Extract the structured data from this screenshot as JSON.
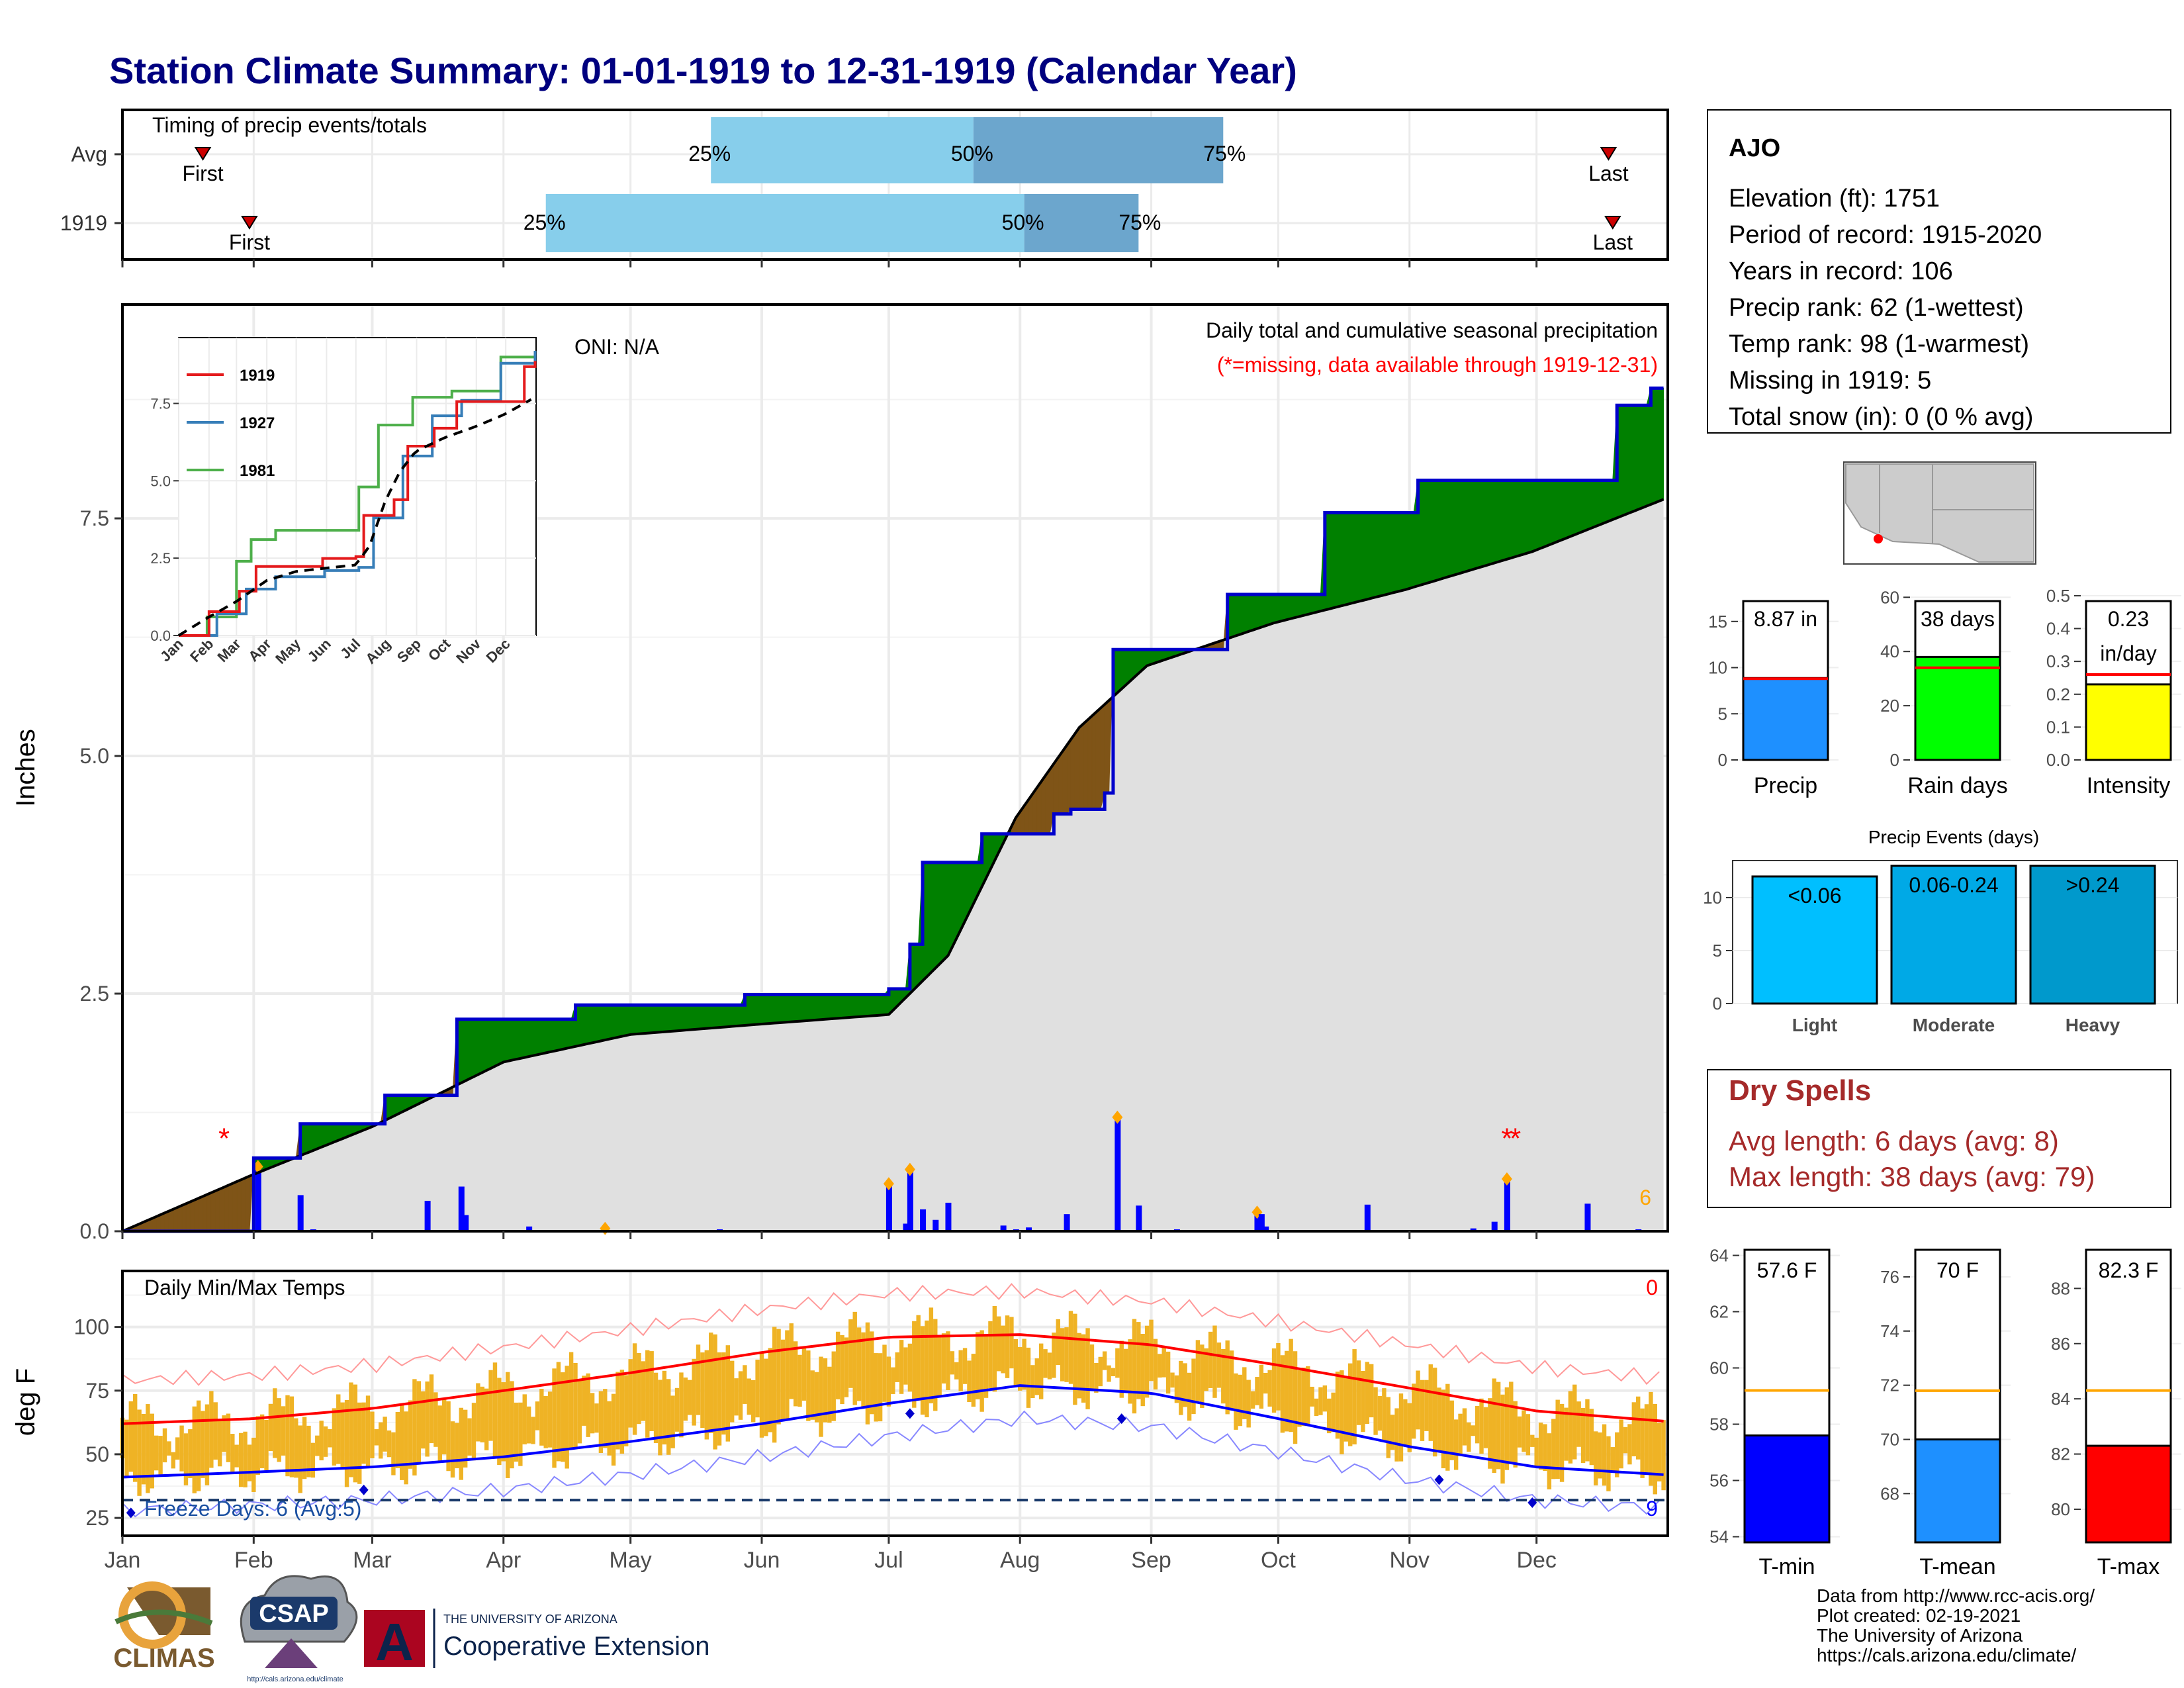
{
  "page_title": "Station Climate Summary: 01-01-1919 to 12-31-1919 (Calendar Year)",
  "colors": {
    "title": "#00007f",
    "cum_1919": "#0000cc",
    "above_avg_fill": "#008000",
    "below_avg_fill": "#7f5417",
    "avg_fill": "#e0e0e0",
    "daily_bar": "#0000ff",
    "temp_bar": "#efb325",
    "red_series": "#ff0000",
    "blue_series": "#0000ff",
    "light_blue": "#87ceeb",
    "mid_blue": "#6ca6cd",
    "dry_spell_text": "#a52a2a"
  },
  "timing_panel": {
    "title": "Timing of precip events/totals",
    "rows": [
      {
        "label": "Avg",
        "first_label": "First",
        "last_label": "Last",
        "first_day": 20,
        "last_day": 352,
        "p25_day": 140,
        "p50_day": 202,
        "p75_day": 261,
        "p25_label": "25%",
        "p50_label": "50%",
        "p75_label": "75%"
      },
      {
        "label": "1919",
        "first_label": "First",
        "last_label": "Last",
        "first_day": 31,
        "last_day": 353,
        "p25_day": 101,
        "p50_day": 214,
        "p75_day": 241,
        "p25_label": "25%",
        "p50_label": "50%",
        "p75_label": "75%"
      }
    ]
  },
  "precip_panel": {
    "title": "Daily total and cumulative seasonal precipitation",
    "subtitle": "(*=missing, data available through 1919-12-31)",
    "oni_label": "ONI: N/A",
    "ylabel": "Inches",
    "count_label": "6",
    "yticks": [
      "0.0",
      "2.5",
      "5.0",
      "7.5"
    ],
    "ylim": [
      0,
      9.75
    ]
  },
  "inset": {
    "legend": [
      "1919",
      "1927",
      "1981"
    ],
    "yticks": [
      "0.0",
      "2.5",
      "5.0",
      "7.5"
    ],
    "xticks": [
      "Jan",
      "Feb",
      "Mar",
      "Apr",
      "May",
      "Jun",
      "Jul",
      "Aug",
      "Sep",
      "Oct",
      "Nov",
      "Dec"
    ]
  },
  "temp_panel": {
    "title": "Daily Min/Max Temps",
    "ylabel": "deg F",
    "yticks": [
      "25",
      "50",
      "75",
      "100"
    ],
    "hot_count": "0",
    "freeze_label": "Freeze Days: 6 (Avg:5)",
    "freeze_count": "9"
  },
  "months": [
    "Jan",
    "Feb",
    "Mar",
    "Apr",
    "May",
    "Jun",
    "Jul",
    "Aug",
    "Sep",
    "Oct",
    "Nov",
    "Dec"
  ],
  "station": {
    "name": "AJO",
    "lines": [
      "Elevation (ft): 1751",
      "Period of record: 1915-2020",
      "Years in record: 106",
      "Precip rank: 62 (1-wettest)",
      "Temp rank: 98 (1-warmest)",
      "Missing in 1919: 5",
      "Total snow (in): 0 (0 % avg)"
    ]
  },
  "summary_bars": [
    {
      "name": "Precip",
      "value_label": "8.87 in",
      "value": 8.87,
      "avg": 8.8,
      "ylim": [
        0,
        18.5
      ],
      "ticks": [
        "0",
        "5",
        "10",
        "15"
      ],
      "color": "#1e90ff"
    },
    {
      "name": "Rain days",
      "value_label": "38 days",
      "value": 38,
      "avg": 34,
      "ylim": [
        0,
        63
      ],
      "ticks": [
        "0",
        "20",
        "40",
        "60"
      ],
      "color": "#00ff00"
    },
    {
      "name": "Intensity",
      "value_label": "0.23\nin/day",
      "value": 0.23,
      "avg": 0.26,
      "ylim": [
        0,
        0.52
      ],
      "ticks": [
        "0.0",
        "0.1",
        "0.2",
        "0.3",
        "0.4",
        "0.5"
      ],
      "color": "#ffff00"
    }
  ],
  "precip_events": {
    "title": "Precip Events (days)",
    "ticks": [
      "0",
      "5",
      "10"
    ],
    "ylim": [
      0,
      13.5
    ],
    "bars": [
      {
        "name": "Light",
        "range_label": "<0.06",
        "value": 12,
        "color": "#00bfff"
      },
      {
        "name": "Moderate",
        "range_label": "0.06-0.24",
        "value": 13,
        "color": "#00a9e6"
      },
      {
        "name": "Heavy",
        "range_label": ">0.24",
        "value": 13,
        "color": "#0099cc"
      }
    ]
  },
  "dry_spells": {
    "title": "Dry Spells",
    "avg_line": "Avg length: 6 days (avg: 8)",
    "max_line": "Max length: 38 days (avg: 79)"
  },
  "temp_summary": [
    {
      "name": "T-min",
      "value_label": "57.6 F",
      "value": 57.6,
      "avg": 59.2,
      "ylim": [
        53.8,
        64.2
      ],
      "ticks": [
        "54",
        "56",
        "58",
        "60",
        "62",
        "64"
      ],
      "color": "#0000ff"
    },
    {
      "name": "T-mean",
      "value_label": "70 F",
      "value": 70,
      "avg": 71.8,
      "ylim": [
        66.2,
        77.0
      ],
      "ticks": [
        "68",
        "70",
        "72",
        "74",
        "76"
      ],
      "color": "#1e90ff"
    },
    {
      "name": "T-max",
      "value_label": "82.3 F",
      "value": 82.3,
      "avg": 84.3,
      "ylim": [
        78.8,
        89.4
      ],
      "ticks": [
        "80",
        "82",
        "84",
        "86",
        "88"
      ],
      "color": "#ff0000"
    }
  ],
  "footer": {
    "credits": [
      "Data from http://www.rcc-acis.org/",
      "Plot created: 02-19-2021",
      "The University of Arizona",
      "https://cals.arizona.edu/climate/"
    ],
    "logos": {
      "climas": "CLIMAS",
      "csap": "CSAP",
      "csap_url": "http://cals.arizona.edu/climate",
      "ua_line1": "THE UNIVERSITY OF ARIZONA",
      "ua_line2": "Cooperative Extension",
      "ua_mark": "A"
    }
  },
  "chart_data": [
    {
      "type": "bar",
      "title": "Timing of precip events/totals",
      "categories": [
        "Avg",
        "1919"
      ],
      "series": [
        {
          "name": "25%",
          "values": [
            140,
            101
          ]
        },
        {
          "name": "50%",
          "values": [
            202,
            214
          ]
        },
        {
          "name": "75%",
          "values": [
            261,
            241
          ]
        }
      ]
    },
    {
      "type": "line",
      "title": "Daily total and cumulative seasonal precipitation",
      "ylabel": "Inches",
      "ylim": [
        0,
        9.75
      ],
      "series": [
        {
          "name": "1919",
          "x": [
            1,
            32,
            43,
            63,
            80,
            108,
            148,
            182,
            187,
            190,
            204,
            221,
            225,
            233,
            235,
            262,
            285,
            307,
            354,
            362,
            365
          ],
          "y": [
            0.0,
            0.77,
            1.13,
            1.43,
            2.23,
            2.38,
            2.49,
            2.55,
            3.02,
            3.88,
            4.18,
            4.39,
            4.44,
            4.61,
            6.12,
            6.7,
            7.56,
            7.9,
            8.69,
            8.87,
            8.87
          ]
        },
        {
          "name": "",
          "x": [
            1,
            31,
            60,
            91,
            121,
            152,
            182,
            196,
            212,
            227,
            243,
            273,
            304,
            334,
            365
          ],
          "y": [
            0.0,
            0.58,
            1.1,
            1.78,
            2.07,
            2.18,
            2.28,
            2.9,
            4.35,
            5.3,
            5.95,
            6.4,
            6.75,
            7.15,
            7.7
          ]
        }
      ],
      "daily_precip": {
        "x": [
          33,
          43,
          46,
          73,
          81,
          82,
          97,
          115,
          142,
          182,
          186,
          187,
          190,
          193,
          196,
          209,
          212,
          215,
          224,
          236,
          241,
          250,
          269,
          270,
          271,
          295,
          320,
          325,
          328,
          347,
          359
        ],
        "y": [
          0.68,
          0.38,
          0.02,
          0.32,
          0.47,
          0.17,
          0.05,
          0.03,
          0.02,
          0.5,
          0.08,
          0.65,
          0.23,
          0.12,
          0.3,
          0.06,
          0.02,
          0.04,
          0.18,
          1.2,
          0.27,
          0.02,
          0.2,
          0.18,
          0.05,
          0.28,
          0.03,
          0.1,
          0.55,
          0.29,
          0.02
        ]
      }
    },
    {
      "type": "line",
      "title": "",
      "xlabels": [
        "Jan",
        "Feb",
        "Mar",
        "Apr",
        "May",
        "Jun",
        "Jul",
        "Aug",
        "Sep",
        "Oct",
        "Nov",
        "Dec"
      ],
      "ylim": [
        0,
        9.2
      ],
      "series": [
        {
          "name": "1919",
          "x": [
            1,
            32,
            63,
            80,
            148,
            182,
            190,
            221,
            235,
            262,
            285,
            354,
            365
          ],
          "y": [
            0.0,
            0.77,
            1.43,
            2.23,
            2.49,
            2.55,
            3.88,
            4.39,
            6.12,
            6.7,
            7.56,
            8.69,
            8.87
          ]
        },
        {
          "name": "1927",
          "x": [
            1,
            40,
            70,
            100,
            150,
            185,
            200,
            230,
            260,
            290,
            330,
            365
          ],
          "y": [
            0.0,
            0.7,
            1.5,
            1.9,
            2.1,
            2.2,
            3.8,
            5.8,
            7.1,
            7.6,
            8.8,
            9.2
          ]
        },
        {
          "name": "1981",
          "x": [
            1,
            30,
            60,
            75,
            100,
            150,
            185,
            205,
            240,
            280,
            330,
            365
          ],
          "y": [
            0.0,
            0.6,
            2.4,
            3.1,
            3.4,
            3.4,
            4.8,
            6.8,
            7.7,
            7.9,
            9.0,
            9.2
          ]
        }
      ]
    },
    {
      "type": "line",
      "title": "Daily Min/Max Temps",
      "ylabel": "deg F",
      "ylim": [
        18,
        122
      ],
      "series": [
        {
          "name": "",
          "x": [
            1,
            32,
            60,
            91,
            121,
            152,
            182,
            213,
            244,
            274,
            305,
            335,
            365
          ],
          "y": [
            62,
            64,
            68,
            75,
            82,
            90,
            96,
            97,
            93,
            85,
            76,
            67,
            63
          ]
        },
        {
          "name": "",
          "x": [
            1,
            32,
            60,
            91,
            121,
            152,
            182,
            213,
            244,
            274,
            305,
            335,
            365
          ],
          "y": [
            41,
            43,
            45,
            49,
            55,
            62,
            70,
            77,
            74,
            64,
            53,
            45,
            42
          ]
        }
      ]
    },
    {
      "type": "bar",
      "categories": [
        "Precip",
        "Rain days",
        "Intensity"
      ],
      "values": [
        8.87,
        38,
        0.23
      ]
    },
    {
      "type": "bar",
      "title": "Precip Events (days)",
      "categories": [
        "Light",
        "Moderate",
        "Heavy"
      ],
      "values": [
        12,
        13,
        13
      ]
    },
    {
      "type": "bar",
      "categories": [
        "T-min",
        "T-mean",
        "T-max"
      ],
      "values": [
        57.6,
        70,
        82.3
      ]
    }
  ]
}
